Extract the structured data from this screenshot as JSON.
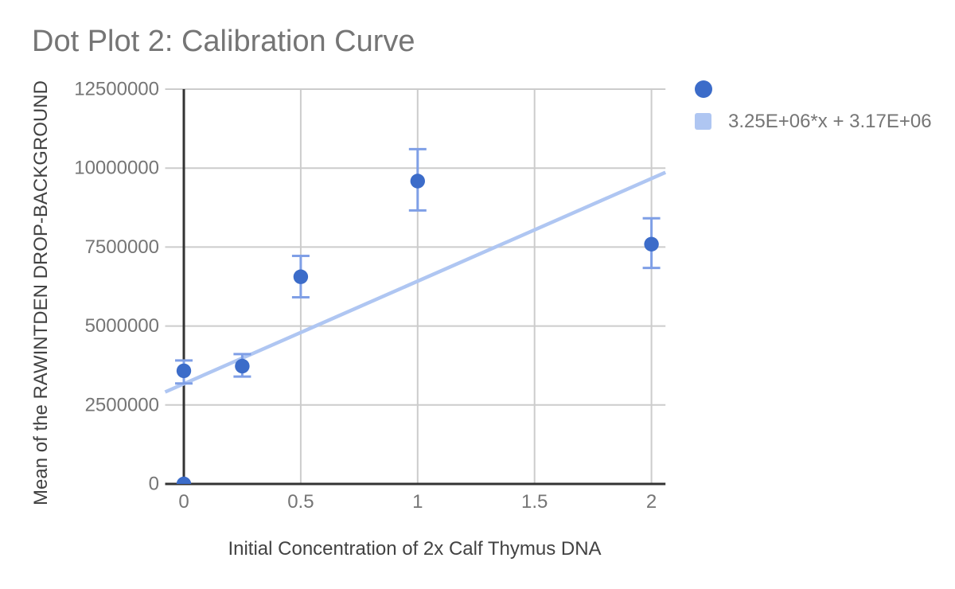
{
  "chart_data": {
    "type": "scatter",
    "title": "Dot Plot 2: Calibration Curve",
    "xlabel": "Initial Concentration of 2x Calf Thymus DNA",
    "ylabel": "Mean of the RAWINTDEN DROP-BACKGROUND",
    "xlim": [
      -0.08,
      2.06
    ],
    "ylim": [
      0,
      12500000
    ],
    "grid": true,
    "x_ticks": [
      0,
      0.5,
      1,
      1.5,
      2
    ],
    "x_tick_labels": [
      "0",
      "0.5",
      "1",
      "1.5",
      "2"
    ],
    "y_ticks": [
      0,
      2500000,
      5000000,
      7500000,
      10000000,
      12500000
    ],
    "y_tick_labels": [
      "0",
      "2500000",
      "5000000",
      "7500000",
      "10000000",
      "12500000"
    ],
    "points": [
      {
        "x": 0,
        "y": 0
      },
      {
        "x": 0,
        "y": 3580000,
        "err_low": 3180000,
        "err_high": 3910000
      },
      {
        "x": 0.25,
        "y": 3730000,
        "err_low": 3400000,
        "err_high": 4110000
      },
      {
        "x": 0.5,
        "y": 6560000,
        "err_low": 5910000,
        "err_high": 7220000
      },
      {
        "x": 1,
        "y": 9590000,
        "err_low": 8660000,
        "err_high": 10600000
      },
      {
        "x": 2,
        "y": 7590000,
        "err_low": 6840000,
        "err_high": 8410000
      }
    ],
    "trendline": {
      "slope": 3250000,
      "intercept": 3170000
    },
    "legend": {
      "position": "right",
      "entries": [
        {
          "marker": "circle",
          "label": ""
        },
        {
          "marker": "square",
          "label": "3.25E+06*x + 3.17E+06"
        }
      ]
    },
    "colors": {
      "point": "#3c6cc9",
      "error_bar": "#7f9fe6",
      "trendline": "#afc6f2",
      "gridline": "#cccccc",
      "axis": "#333333",
      "title_text": "#757575",
      "tick_text": "#757575",
      "axis_title_text": "#424242",
      "legend_text": "#757575"
    }
  }
}
